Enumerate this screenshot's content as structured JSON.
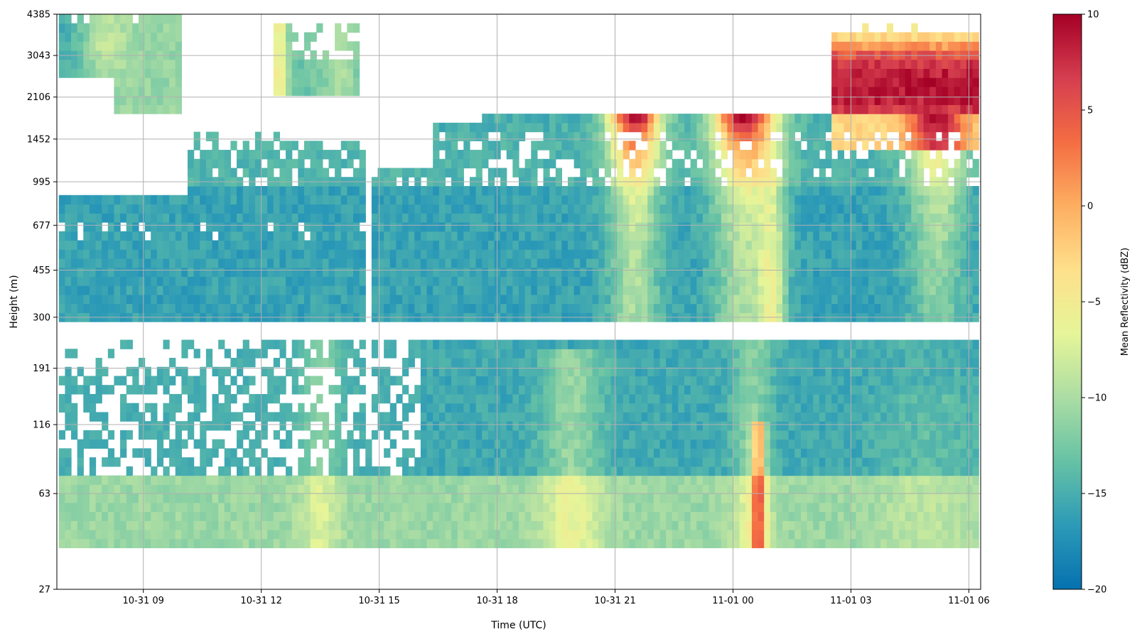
{
  "chart_data": {
    "type": "heatmap",
    "xlabel": "Time (UTC)",
    "ylabel": "Height (m)",
    "colorbar_label": "Mean Reflectivity (dBZ)",
    "grid": true,
    "colormap": "Spectral_r",
    "x_ticks": [
      "10-31 09",
      "10-31 12",
      "10-31 15",
      "10-31 18",
      "10-31 21",
      "11-01 00",
      "11-01 03",
      "11-01 06"
    ],
    "y_ticks": [
      "27",
      "63",
      "116",
      "191",
      "300",
      "455",
      "677",
      "995",
      "1452",
      "2106",
      "3043",
      "4385"
    ],
    "colorbar_ticks": [
      "10",
      "5",
      "0",
      "−5",
      "−10",
      "−15",
      "−20"
    ],
    "color_range_dbz": [
      -20,
      10
    ],
    "time_range_hours": [
      6.8,
      30.3
    ],
    "height_range_m": [
      27,
      4385
    ],
    "colors": {
      "stops": [
        "#0571b0",
        "#2c9ab7",
        "#66c2a5",
        "#abdda4",
        "#e6f598",
        "#fee08b",
        "#fdae61",
        "#f46d43",
        "#d53e4f",
        "#a50026"
      ]
    },
    "features": [
      {
        "label": "surface layer",
        "t0": 6.8,
        "t1": 30.3,
        "h0": 40,
        "h1": 70,
        "dbz": -10
      },
      {
        "label": "stratiform low cloud",
        "t0": 6.8,
        "t1": 30.3,
        "h0": 280,
        "h1": 995,
        "dbz": -15
      },
      {
        "label": "upper cloud early",
        "t0": 6.9,
        "t1": 10.0,
        "h0": 1700,
        "h1": 4385,
        "dbz": -11
      },
      {
        "label": "upper cloud mid",
        "t0": 12.3,
        "t1": 14.5,
        "h0": 2200,
        "h1": 3900,
        "dbz": -12
      },
      {
        "label": "precipitating cell A",
        "t0": 20.8,
        "t1": 22.2,
        "h0": 995,
        "h1": 1800,
        "dbz": 8
      },
      {
        "label": "precipitating cell B",
        "t0": 23.5,
        "t1": 25.1,
        "h0": 995,
        "h1": 1800,
        "dbz": 8
      },
      {
        "label": "deep cloud late",
        "t0": 26.5,
        "t1": 30.2,
        "h0": 1452,
        "h1": 3600,
        "dbz": 9
      },
      {
        "label": "surface cell",
        "t0": 24.5,
        "t1": 24.8,
        "h0": 50,
        "h1": 110,
        "dbz": 3
      }
    ]
  }
}
